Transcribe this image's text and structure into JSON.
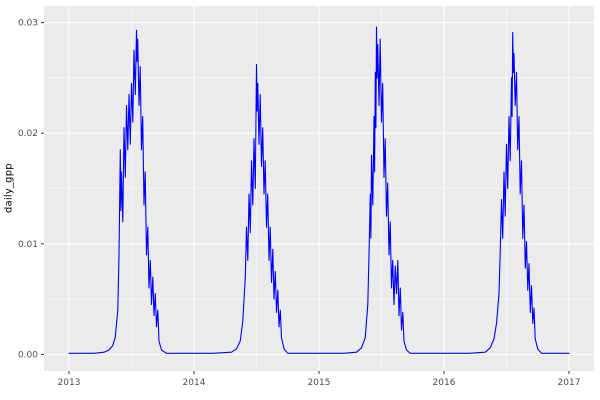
{
  "chart_data": {
    "type": "line",
    "title": "",
    "xlabel": "",
    "ylabel": "daily_gpp",
    "x_range": [
      2013,
      2017
    ],
    "y_range": [
      0,
      0.03
    ],
    "x_major": [
      2013,
      2014,
      2015,
      2016,
      2017
    ],
    "x_tick_labels": [
      "2013",
      "2014",
      "2015",
      "2016",
      "2017"
    ],
    "x_minor": [
      2013.5,
      2014.5,
      2015.5,
      2016.5
    ],
    "y_major": [
      0,
      0.01,
      0.02,
      0.03
    ],
    "y_tick_labels": [
      "0.00",
      "0.01",
      "0.02",
      "0.03"
    ],
    "y_minor": [
      0.005,
      0.015,
      0.025
    ],
    "grid": "major-minor",
    "legend": "none",
    "colors": {
      "line": "#0000FF",
      "panel_background": "#EBEBEB",
      "grid_major": "#FFFFFF",
      "grid_minor": "#FFFFFF",
      "tick_mark": "#333333",
      "tick_label": "#4D4D4D",
      "axis_title": "#000000",
      "figure_background": "#FFFFFF"
    },
    "series": [
      {
        "name": "daily_gpp",
        "points": [
          [
            2013.0,
            0.0001
          ],
          [
            2013.1,
            0.0001
          ],
          [
            2013.2,
            0.0001
          ],
          [
            2013.28,
            0.0002
          ],
          [
            2013.32,
            0.0004
          ],
          [
            2013.35,
            0.0008
          ],
          [
            2013.37,
            0.0015
          ],
          [
            2013.39,
            0.004
          ],
          [
            2013.4,
            0.009
          ],
          [
            2013.41,
            0.0185
          ],
          [
            2013.415,
            0.013
          ],
          [
            2013.42,
            0.0165
          ],
          [
            2013.43,
            0.012
          ],
          [
            2013.44,
            0.0205
          ],
          [
            2013.45,
            0.016
          ],
          [
            2013.46,
            0.0225
          ],
          [
            2013.47,
            0.0185
          ],
          [
            2013.48,
            0.0235
          ],
          [
            2013.49,
            0.019
          ],
          [
            2013.5,
            0.0245
          ],
          [
            2013.51,
            0.021
          ],
          [
            2013.52,
            0.0275
          ],
          [
            2013.53,
            0.0235
          ],
          [
            2013.54,
            0.0293
          ],
          [
            2013.545,
            0.0265
          ],
          [
            2013.55,
            0.0285
          ],
          [
            2013.56,
            0.0225
          ],
          [
            2013.57,
            0.026
          ],
          [
            2013.58,
            0.0185
          ],
          [
            2013.59,
            0.0215
          ],
          [
            2013.6,
            0.0135
          ],
          [
            2013.61,
            0.0165
          ],
          [
            2013.62,
            0.009
          ],
          [
            2013.63,
            0.0115
          ],
          [
            2013.64,
            0.006
          ],
          [
            2013.65,
            0.0085
          ],
          [
            2013.66,
            0.0045
          ],
          [
            2013.67,
            0.007
          ],
          [
            2013.68,
            0.0035
          ],
          [
            2013.69,
            0.0055
          ],
          [
            2013.7,
            0.0025
          ],
          [
            2013.71,
            0.004
          ],
          [
            2013.72,
            0.0012
          ],
          [
            2013.74,
            0.0004
          ],
          [
            2013.78,
            0.0001
          ],
          [
            2013.9,
            0.0001
          ],
          [
            2014.0,
            0.0001
          ],
          [
            2014.15,
            0.0001
          ],
          [
            2014.3,
            0.0002
          ],
          [
            2014.34,
            0.0005
          ],
          [
            2014.37,
            0.0012
          ],
          [
            2014.39,
            0.003
          ],
          [
            2014.41,
            0.007
          ],
          [
            2014.42,
            0.0115
          ],
          [
            2014.43,
            0.0085
          ],
          [
            2014.44,
            0.0145
          ],
          [
            2014.45,
            0.011
          ],
          [
            2014.46,
            0.0175
          ],
          [
            2014.47,
            0.0135
          ],
          [
            2014.48,
            0.0195
          ],
          [
            2014.49,
            0.015
          ],
          [
            2014.5,
            0.0262
          ],
          [
            2014.505,
            0.022
          ],
          [
            2014.51,
            0.0245
          ],
          [
            2014.52,
            0.019
          ],
          [
            2014.53,
            0.0235
          ],
          [
            2014.54,
            0.017
          ],
          [
            2014.55,
            0.0205
          ],
          [
            2014.56,
            0.0145
          ],
          [
            2014.57,
            0.0175
          ],
          [
            2014.58,
            0.0115
          ],
          [
            2014.59,
            0.0145
          ],
          [
            2014.6,
            0.0085
          ],
          [
            2014.61,
            0.0115
          ],
          [
            2014.62,
            0.0065
          ],
          [
            2014.63,
            0.0095
          ],
          [
            2014.64,
            0.005
          ],
          [
            2014.65,
            0.0075
          ],
          [
            2014.66,
            0.0038
          ],
          [
            2014.67,
            0.0058
          ],
          [
            2014.68,
            0.0025
          ],
          [
            2014.69,
            0.004
          ],
          [
            2014.7,
            0.0015
          ],
          [
            2014.72,
            0.0005
          ],
          [
            2014.75,
            0.0001
          ],
          [
            2014.9,
            0.0001
          ],
          [
            2015.0,
            0.0001
          ],
          [
            2015.2,
            0.0001
          ],
          [
            2015.3,
            0.0002
          ],
          [
            2015.34,
            0.0006
          ],
          [
            2015.37,
            0.0015
          ],
          [
            2015.39,
            0.0045
          ],
          [
            2015.4,
            0.009
          ],
          [
            2015.41,
            0.0145
          ],
          [
            2015.415,
            0.0105
          ],
          [
            2015.42,
            0.018
          ],
          [
            2015.43,
            0.0135
          ],
          [
            2015.44,
            0.0215
          ],
          [
            2015.445,
            0.0165
          ],
          [
            2015.45,
            0.0255
          ],
          [
            2015.455,
            0.0205
          ],
          [
            2015.46,
            0.0296
          ],
          [
            2015.465,
            0.025
          ],
          [
            2015.47,
            0.028
          ],
          [
            2015.48,
            0.0225
          ],
          [
            2015.49,
            0.0285
          ],
          [
            2015.5,
            0.021
          ],
          [
            2015.51,
            0.0245
          ],
          [
            2015.52,
            0.016
          ],
          [
            2015.53,
            0.0195
          ],
          [
            2015.54,
            0.0125
          ],
          [
            2015.55,
            0.0155
          ],
          [
            2015.56,
            0.009
          ],
          [
            2015.57,
            0.012
          ],
          [
            2015.58,
            0.006
          ],
          [
            2015.59,
            0.0085
          ],
          [
            2015.6,
            0.0045
          ],
          [
            2015.61,
            0.008
          ],
          [
            2015.62,
            0.0055
          ],
          [
            2015.63,
            0.0085
          ],
          [
            2015.64,
            0.0035
          ],
          [
            2015.65,
            0.006
          ],
          [
            2015.66,
            0.0022
          ],
          [
            2015.67,
            0.0038
          ],
          [
            2015.68,
            0.0012
          ],
          [
            2015.7,
            0.0004
          ],
          [
            2015.73,
            0.0001
          ],
          [
            2015.9,
            0.0001
          ],
          [
            2016.0,
            0.0001
          ],
          [
            2016.2,
            0.0001
          ],
          [
            2016.33,
            0.0002
          ],
          [
            2016.37,
            0.0006
          ],
          [
            2016.4,
            0.0014
          ],
          [
            2016.42,
            0.0028
          ],
          [
            2016.44,
            0.0055
          ],
          [
            2016.45,
            0.0095
          ],
          [
            2016.46,
            0.014
          ],
          [
            2016.47,
            0.0105
          ],
          [
            2016.48,
            0.0165
          ],
          [
            2016.49,
            0.0125
          ],
          [
            2016.5,
            0.019
          ],
          [
            2016.51,
            0.015
          ],
          [
            2016.52,
            0.0215
          ],
          [
            2016.53,
            0.0175
          ],
          [
            2016.54,
            0.025
          ],
          [
            2016.545,
            0.0215
          ],
          [
            2016.55,
            0.0291
          ],
          [
            2016.555,
            0.0255
          ],
          [
            2016.56,
            0.0272
          ],
          [
            2016.57,
            0.0225
          ],
          [
            2016.58,
            0.0255
          ],
          [
            2016.59,
            0.0185
          ],
          [
            2016.6,
            0.0215
          ],
          [
            2016.61,
            0.0145
          ],
          [
            2016.62,
            0.0175
          ],
          [
            2016.63,
            0.0105
          ],
          [
            2016.64,
            0.0135
          ],
          [
            2016.65,
            0.0078
          ],
          [
            2016.66,
            0.0102
          ],
          [
            2016.67,
            0.0058
          ],
          [
            2016.68,
            0.0082
          ],
          [
            2016.69,
            0.0038
          ],
          [
            2016.7,
            0.0062
          ],
          [
            2016.71,
            0.0028
          ],
          [
            2016.72,
            0.0042
          ],
          [
            2016.73,
            0.0014
          ],
          [
            2016.75,
            0.0005
          ],
          [
            2016.78,
            0.0001
          ],
          [
            2016.95,
            0.0001
          ],
          [
            2017.0,
            0.0001
          ]
        ]
      }
    ]
  }
}
